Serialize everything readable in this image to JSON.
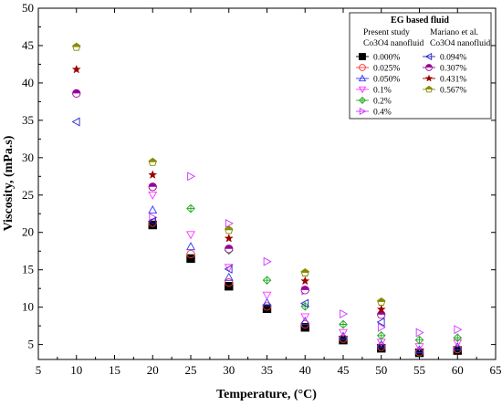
{
  "chart_data": {
    "type": "scatter",
    "title": "",
    "xlabel": "Temperature, (°C)",
    "ylabel": "Viscosity, (mPa.s)",
    "xlim": [
      5,
      65
    ],
    "ylim": [
      3,
      50
    ],
    "xticks": [
      5,
      10,
      15,
      20,
      25,
      30,
      35,
      40,
      45,
      50,
      55,
      60,
      65
    ],
    "yticks": [
      5,
      10,
      15,
      20,
      25,
      30,
      35,
      40,
      45,
      50
    ],
    "grid": false,
    "legend_position": "top-right",
    "legend": {
      "title": "EG based fluid",
      "left_heading_1": "Present study",
      "left_heading_2": "Co3O4 nanofluid",
      "right_heading_1": "Mariano et al.",
      "right_heading_2": "Co3O4 nanofluid",
      "right_heading_1_color": "#1a1aff"
    },
    "series": [
      {
        "name": "0.000%",
        "marker": "square-filled",
        "color": "#000000",
        "x": [
          20,
          25,
          30,
          35,
          40,
          45,
          50,
          55,
          60
        ],
        "y": [
          21.0,
          16.5,
          12.8,
          9.8,
          7.3,
          5.6,
          4.5,
          3.9,
          4.2
        ]
      },
      {
        "name": "0.025%",
        "marker": "circle",
        "color": "#ff3333",
        "x": [
          20,
          25,
          30,
          35,
          40,
          45,
          50,
          55,
          60
        ],
        "y": [
          21.3,
          17.1,
          13.3,
          10.1,
          7.7,
          5.8,
          4.7,
          4.0,
          4.4
        ]
      },
      {
        "name": "0.050%",
        "marker": "triangle-up",
        "color": "#3333ff",
        "x": [
          20,
          25,
          30,
          35,
          40,
          45,
          50,
          55,
          60
        ],
        "y": [
          23.0,
          18.1,
          14.0,
          10.6,
          8.1,
          6.1,
          5.0,
          4.3,
          4.7
        ]
      },
      {
        "name": "0.1%",
        "marker": "triangle-down",
        "color": "#ff33ff",
        "x": [
          20,
          25,
          30,
          35,
          40,
          45,
          50,
          55,
          60
        ],
        "y": [
          25.0,
          19.7,
          15.3,
          11.6,
          8.7,
          6.6,
          5.3,
          4.7,
          5.2
        ]
      },
      {
        "name": "0.2%",
        "marker": "diamond-plus",
        "color": "#22aa22",
        "x": [
          25,
          30,
          35,
          40,
          45,
          50,
          55,
          60
        ],
        "y": [
          23.2,
          17.6,
          13.6,
          10.1,
          7.7,
          6.2,
          5.6,
          5.9
        ]
      },
      {
        "name": "0.4%",
        "marker": "triangle-right",
        "color": "#cc33ff",
        "x": [
          20,
          25,
          30,
          35,
          40,
          45,
          50,
          55,
          60
        ],
        "y": [
          22.0,
          27.5,
          21.2,
          16.1,
          12.2,
          9.1,
          7.3,
          6.6,
          7.0
        ]
      },
      {
        "name": "0.094%",
        "marker": "triangle-left",
        "color": "#2222cc",
        "x": [
          10,
          20,
          30,
          40,
          50
        ],
        "y": [
          34.8,
          21.5,
          15.1,
          10.5,
          8.0
        ]
      },
      {
        "name": "0.307%",
        "marker": "circle-half",
        "color": "#990099",
        "x": [
          10,
          20,
          30,
          40,
          50
        ],
        "y": [
          38.6,
          26.1,
          17.8,
          12.3,
          9.0
        ]
      },
      {
        "name": "0.431%",
        "marker": "star",
        "color": "#990000",
        "x": [
          10,
          20,
          30,
          40,
          50
        ],
        "y": [
          41.8,
          27.7,
          19.2,
          13.5,
          9.7
        ]
      },
      {
        "name": "0.567%",
        "marker": "pentagon-half",
        "color": "#888800",
        "x": [
          10,
          20,
          30,
          40,
          50
        ],
        "y": [
          44.8,
          29.4,
          20.3,
          14.6,
          10.7
        ]
      }
    ]
  }
}
